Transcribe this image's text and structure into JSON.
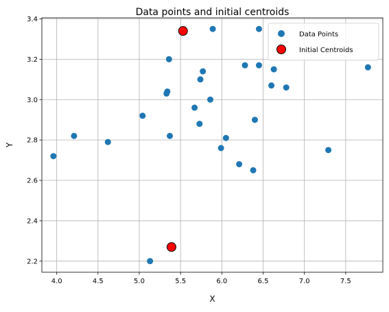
{
  "chart_data": {
    "type": "scatter",
    "title": "Data points and initial centroids",
    "xlabel": "X",
    "ylabel": "Y",
    "xlim": [
      3.82,
      7.95
    ],
    "ylim": [
      2.145,
      3.405
    ],
    "xticks": [
      4.0,
      4.5,
      5.0,
      5.5,
      6.0,
      6.5,
      7.0,
      7.5
    ],
    "yticks": [
      2.2,
      2.4,
      2.6,
      2.8,
      3.0,
      3.2,
      3.4
    ],
    "xtick_labels": [
      "4.0",
      "4.5",
      "5.0",
      "5.5",
      "6.0",
      "6.5",
      "7.0",
      "7.5"
    ],
    "ytick_labels": [
      "2.2",
      "2.4",
      "2.6",
      "2.8",
      "3.0",
      "3.2",
      "3.4"
    ],
    "grid": true,
    "legend_position": "top-right",
    "series": [
      {
        "name": "Data Points",
        "color": "#1f77b4",
        "marker": "circle",
        "points": [
          [
            3.96,
            2.72
          ],
          [
            4.21,
            2.82
          ],
          [
            4.62,
            2.79
          ],
          [
            5.04,
            2.92
          ],
          [
            5.13,
            2.2
          ],
          [
            5.33,
            3.03
          ],
          [
            5.34,
            3.04
          ],
          [
            5.36,
            3.2
          ],
          [
            5.37,
            2.82
          ],
          [
            5.67,
            2.96
          ],
          [
            5.73,
            2.88
          ],
          [
            5.74,
            3.1
          ],
          [
            5.77,
            3.14
          ],
          [
            5.86,
            3.0
          ],
          [
            5.89,
            3.35
          ],
          [
            5.99,
            2.76
          ],
          [
            6.05,
            2.81
          ],
          [
            6.21,
            2.68
          ],
          [
            6.28,
            3.17
          ],
          [
            6.38,
            2.65
          ],
          [
            6.4,
            2.9
          ],
          [
            6.45,
            3.17
          ],
          [
            6.45,
            3.35
          ],
          [
            6.6,
            3.07
          ],
          [
            6.63,
            3.15
          ],
          [
            6.78,
            3.06
          ],
          [
            7.29,
            2.75
          ],
          [
            7.77,
            3.16
          ]
        ]
      },
      {
        "name": "Initial Centroids",
        "color": "#ff0000",
        "edge_color": "#000000",
        "marker": "circle",
        "points": [
          [
            5.53,
            3.34
          ],
          [
            5.39,
            2.27
          ]
        ]
      }
    ]
  }
}
